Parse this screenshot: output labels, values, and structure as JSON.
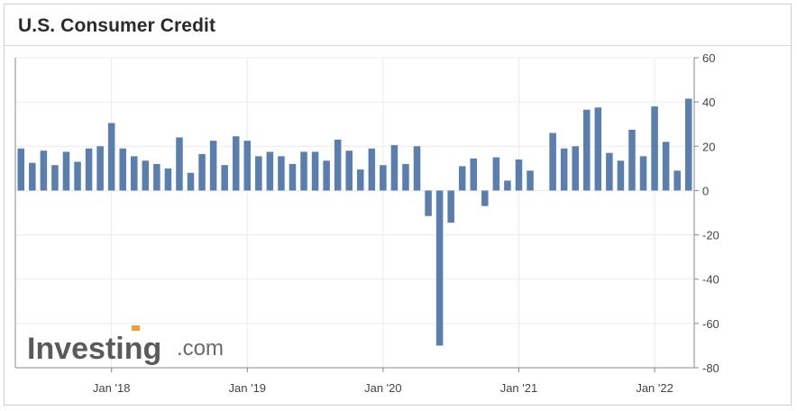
{
  "header": {
    "title": "U.S. Consumer Credit"
  },
  "logo": {
    "text": "Investing",
    "suffix": ".com"
  },
  "colors": {
    "bar": "#5a7fae",
    "grid": "#ececec",
    "axis": "#888888",
    "accent_orange": "#f0a030"
  },
  "chart_data": {
    "type": "bar",
    "title": "U.S. Consumer Credit",
    "xlabel": "",
    "ylabel": "",
    "ylim": [
      -80,
      60
    ],
    "y_ticks": [
      60,
      40,
      20,
      0,
      -20,
      -40,
      -60,
      -80
    ],
    "y_axis_position": "right",
    "grid": true,
    "x_tick_labels": [
      "Jan '18",
      "Jan '19",
      "Jan '20",
      "Jan '21",
      "Jan '22"
    ],
    "x_tick_months": [
      "2018-01",
      "2019-01",
      "2020-01",
      "2021-01",
      "2022-01"
    ],
    "categories": [
      "2017-05",
      "2017-06",
      "2017-07",
      "2017-08",
      "2017-09",
      "2017-10",
      "2017-11",
      "2017-12",
      "2018-01",
      "2018-02",
      "2018-03",
      "2018-04",
      "2018-05",
      "2018-06",
      "2018-07",
      "2018-08",
      "2018-09",
      "2018-10",
      "2018-11",
      "2018-12",
      "2019-01",
      "2019-02",
      "2019-03",
      "2019-04",
      "2019-05",
      "2019-06",
      "2019-07",
      "2019-08",
      "2019-09",
      "2019-10",
      "2019-11",
      "2019-12",
      "2020-01",
      "2020-02",
      "2020-03",
      "2020-04",
      "2020-05",
      "2020-06",
      "2020-07",
      "2020-08",
      "2020-09",
      "2020-10",
      "2020-11",
      "2020-12",
      "2021-01",
      "2021-02",
      "2021-03",
      "2021-04",
      "2021-05",
      "2021-06",
      "2021-07",
      "2021-08",
      "2021-09",
      "2021-10",
      "2021-11",
      "2021-12",
      "2022-01",
      "2022-02",
      "2022-03",
      "2022-04"
    ],
    "values": [
      19.0,
      12.5,
      18.0,
      11.5,
      17.5,
      13.0,
      19.0,
      20.0,
      30.5,
      19.0,
      15.5,
      13.5,
      12.0,
      10.0,
      24.0,
      8.0,
      16.5,
      22.5,
      11.5,
      24.5,
      22.5,
      15.5,
      17.5,
      15.5,
      12.0,
      17.5,
      17.5,
      13.5,
      23.0,
      18.0,
      9.5,
      19.0,
      11.5,
      20.5,
      12.0,
      20.0,
      -11.5,
      -70.0,
      -14.5,
      11.0,
      14.5,
      -7.0,
      15.0,
      4.5,
      14.0,
      9.0,
      0,
      26.0,
      19.0,
      20.0,
      36.5,
      37.5,
      17.0,
      13.5,
      27.5,
      15.5,
      38.0,
      22.0,
      9.0,
      41.5
    ]
  }
}
